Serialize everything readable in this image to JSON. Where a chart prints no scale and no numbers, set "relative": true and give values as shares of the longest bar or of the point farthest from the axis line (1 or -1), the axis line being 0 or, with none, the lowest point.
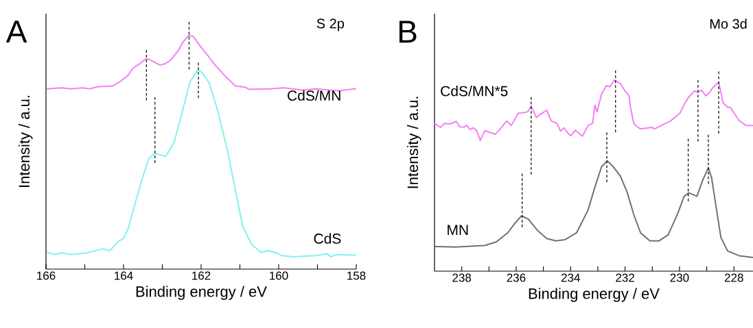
{
  "chart_data": [
    {
      "type": "line",
      "relative": true,
      "tick_labels": "x",
      "xlabel": "Binding energy / eV",
      "ylabel": "Intensity / a.u.",
      "xlim": [
        166,
        158
      ],
      "xticks": [
        166,
        {
          "value": 165,
          "label": null
        },
        164,
        {
          "value": 163,
          "label": null
        },
        162,
        {
          "value": 161,
          "label": null
        },
        160,
        {
          "value": 159,
          "label": null
        },
        158
      ],
      "annotations": [
        "A",
        "S 2p"
      ],
      "series": [
        {
          "name": "CdS/MN",
          "color": "#f47ff4",
          "x": [
            165.98,
            165.59,
            165.36,
            165.06,
            164.88,
            164.65,
            164.3,
            164.09,
            163.88,
            163.76,
            163.59,
            163.44,
            163.35,
            163.06,
            162.94,
            162.79,
            162.58,
            162.47,
            162.32,
            162.2,
            161.99,
            161.82,
            161.64,
            161.4,
            161.11,
            160.87,
            160.76,
            160.22,
            159.87,
            159.4,
            159.04,
            158.45,
            158.0
          ],
          "values": [
            0.729,
            0.733,
            0.729,
            0.733,
            0.729,
            0.738,
            0.74,
            0.758,
            0.784,
            0.812,
            0.83,
            0.849,
            0.849,
            0.825,
            0.83,
            0.844,
            0.886,
            0.918,
            0.945,
            0.941,
            0.895,
            0.862,
            0.825,
            0.784,
            0.74,
            0.736,
            0.727,
            0.729,
            0.733,
            0.724,
            0.729,
            0.721,
            0.73
          ]
        },
        {
          "name": "CdS",
          "color": "#7ff2ef",
          "x": [
            165.98,
            165.77,
            165.59,
            165.36,
            164.94,
            164.53,
            164.35,
            164.12,
            164.0,
            163.88,
            163.7,
            163.53,
            163.35,
            163.2,
            162.91,
            162.7,
            162.53,
            162.29,
            162.08,
            161.96,
            161.79,
            161.58,
            161.32,
            161.11,
            160.93,
            160.7,
            160.46,
            160.28,
            160.05,
            159.93,
            159.63,
            159.04,
            158.75,
            158.66,
            158.51,
            158.0
          ],
          "values": [
            0.068,
            0.059,
            0.066,
            0.059,
            0.066,
            0.082,
            0.075,
            0.114,
            0.124,
            0.165,
            0.267,
            0.359,
            0.447,
            0.468,
            0.456,
            0.512,
            0.609,
            0.756,
            0.807,
            0.793,
            0.752,
            0.645,
            0.479,
            0.313,
            0.175,
            0.101,
            0.068,
            0.075,
            0.066,
            0.055,
            0.05,
            0.055,
            0.062,
            0.05,
            0.059,
            0.056
          ]
        },
        {
          "type": "line",
          "color": "#000000",
          "line_style": "dashed",
          "x": [
            163.41,
            163.41
          ],
          "values": [
            0.886,
            0.682
          ]
        },
        {
          "type": "line",
          "color": "#000000",
          "line_style": "dashed",
          "x": [
            162.31,
            162.31
          ],
          "values": [
            1.0,
            0.807
          ]
        },
        {
          "type": "line",
          "color": "#000000",
          "line_style": "dashed",
          "x": [
            163.19,
            163.19
          ],
          "values": [
            0.696,
            0.429
          ]
        },
        {
          "type": "line",
          "color": "#000000",
          "line_style": "dashed",
          "x": [
            162.07,
            162.07
          ],
          "values": [
            0.835,
            0.692
          ]
        }
      ]
    },
    {
      "type": "line",
      "relative": true,
      "tick_labels": "x",
      "xlabel": "Binding energy / eV",
      "ylabel": "Intensity / a.u.",
      "xlim": [
        239,
        227.3
      ],
      "xticks": [
        238,
        {
          "value": 237,
          "label": null
        },
        236,
        {
          "value": 235,
          "label": null
        },
        234,
        {
          "value": 233,
          "label": null
        },
        232,
        {
          "value": 231,
          "label": null
        },
        230,
        {
          "value": 229,
          "label": null
        },
        228
      ],
      "annotations": [
        "B",
        "Mo 3d"
      ],
      "series": [
        {
          "name": "CdS/MN*5",
          "color": "#f47ff4",
          "x": [
            239.0,
            238.79,
            238.62,
            238.41,
            238.2,
            238.08,
            237.91,
            237.82,
            237.7,
            237.57,
            237.44,
            237.32,
            237.15,
            236.77,
            236.6,
            236.35,
            236.18,
            235.93,
            235.63,
            235.55,
            235.45,
            235.26,
            235.09,
            234.88,
            234.71,
            234.5,
            234.37,
            234.25,
            234.12,
            233.99,
            233.83,
            233.57,
            233.36,
            233.19,
            233.11,
            233.03,
            232.86,
            232.69,
            232.56,
            232.39,
            232.18,
            232.02,
            231.85,
            231.8,
            231.68,
            231.59,
            231.43,
            231.01,
            230.92,
            230.67,
            230.33,
            229.99,
            229.83,
            229.66,
            229.45,
            229.32,
            229.2,
            229.03,
            228.9,
            228.77,
            228.56,
            228.4,
            228.23,
            228.14,
            227.81,
            227.55,
            227.3
          ],
          "values": [
            0.736,
            0.716,
            0.736,
            0.733,
            0.746,
            0.719,
            0.717,
            0.727,
            0.705,
            0.714,
            0.697,
            0.651,
            0.7,
            0.682,
            0.705,
            0.748,
            0.725,
            0.786,
            0.791,
            0.799,
            0.822,
            0.765,
            0.782,
            0.802,
            0.748,
            0.736,
            0.697,
            0.714,
            0.69,
            0.674,
            0.702,
            0.672,
            0.725,
            0.736,
            0.827,
            0.793,
            0.884,
            0.924,
            0.918,
            0.952,
            0.935,
            0.901,
            0.873,
            0.816,
            0.736,
            0.723,
            0.708,
            0.716,
            0.708,
            0.725,
            0.748,
            0.786,
            0.83,
            0.867,
            0.898,
            0.89,
            0.901,
            0.873,
            0.89,
            0.914,
            0.941,
            0.839,
            0.816,
            0.816,
            0.75,
            0.725,
            0.725
          ]
        },
        {
          "name": "MN",
          "color": "#707070",
          "x": [
            239.0,
            238.24,
            237.15,
            236.73,
            236.31,
            236.06,
            235.8,
            235.55,
            235.21,
            234.88,
            234.54,
            234.2,
            233.78,
            233.36,
            233.11,
            232.86,
            232.65,
            232.44,
            232.18,
            231.93,
            231.68,
            231.43,
            231.09,
            230.75,
            230.42,
            230.08,
            229.83,
            229.66,
            229.36,
            229.15,
            228.94,
            228.82,
            228.65,
            228.48,
            228.23,
            227.81,
            227.3
          ],
          "values": [
            0.123,
            0.12,
            0.128,
            0.146,
            0.191,
            0.236,
            0.276,
            0.259,
            0.202,
            0.163,
            0.151,
            0.157,
            0.191,
            0.304,
            0.418,
            0.521,
            0.549,
            0.521,
            0.475,
            0.396,
            0.282,
            0.191,
            0.151,
            0.151,
            0.18,
            0.282,
            0.373,
            0.39,
            0.373,
            0.452,
            0.515,
            0.464,
            0.316,
            0.168,
            0.1,
            0.077,
            0.068
          ]
        },
        {
          "type": "line",
          "color": "#000000",
          "line_style": "dashed",
          "x": [
            235.45,
            235.45
          ],
          "values": [
            0.867,
            0.481
          ]
        },
        {
          "type": "line",
          "color": "#000000",
          "line_style": "dashed",
          "x": [
            232.35,
            232.35
          ],
          "values": [
            1.0,
            0.691
          ]
        },
        {
          "type": "line",
          "color": "#000000",
          "line_style": "dashed",
          "x": [
            229.32,
            229.32
          ],
          "values": [
            0.952,
            0.645
          ]
        },
        {
          "type": "line",
          "color": "#000000",
          "line_style": "dashed",
          "x": [
            228.56,
            228.56
          ],
          "values": [
            0.995,
            0.685
          ]
        },
        {
          "type": "line",
          "color": "#000000",
          "line_style": "dashed",
          "x": [
            235.78,
            235.78
          ],
          "values": [
            0.486,
            0.219
          ]
        },
        {
          "type": "line",
          "color": "#000000",
          "line_style": "dashed",
          "x": [
            232.67,
            232.67
          ],
          "values": [
            0.691,
            0.443
          ]
        },
        {
          "type": "line",
          "color": "#000000",
          "line_style": "dashed",
          "x": [
            229.68,
            229.68
          ],
          "values": [
            0.659,
            0.348
          ]
        },
        {
          "type": "line",
          "color": "#000000",
          "line_style": "dashed",
          "x": [
            228.94,
            228.94
          ],
          "values": [
            0.679,
            0.435
          ]
        }
      ]
    }
  ]
}
